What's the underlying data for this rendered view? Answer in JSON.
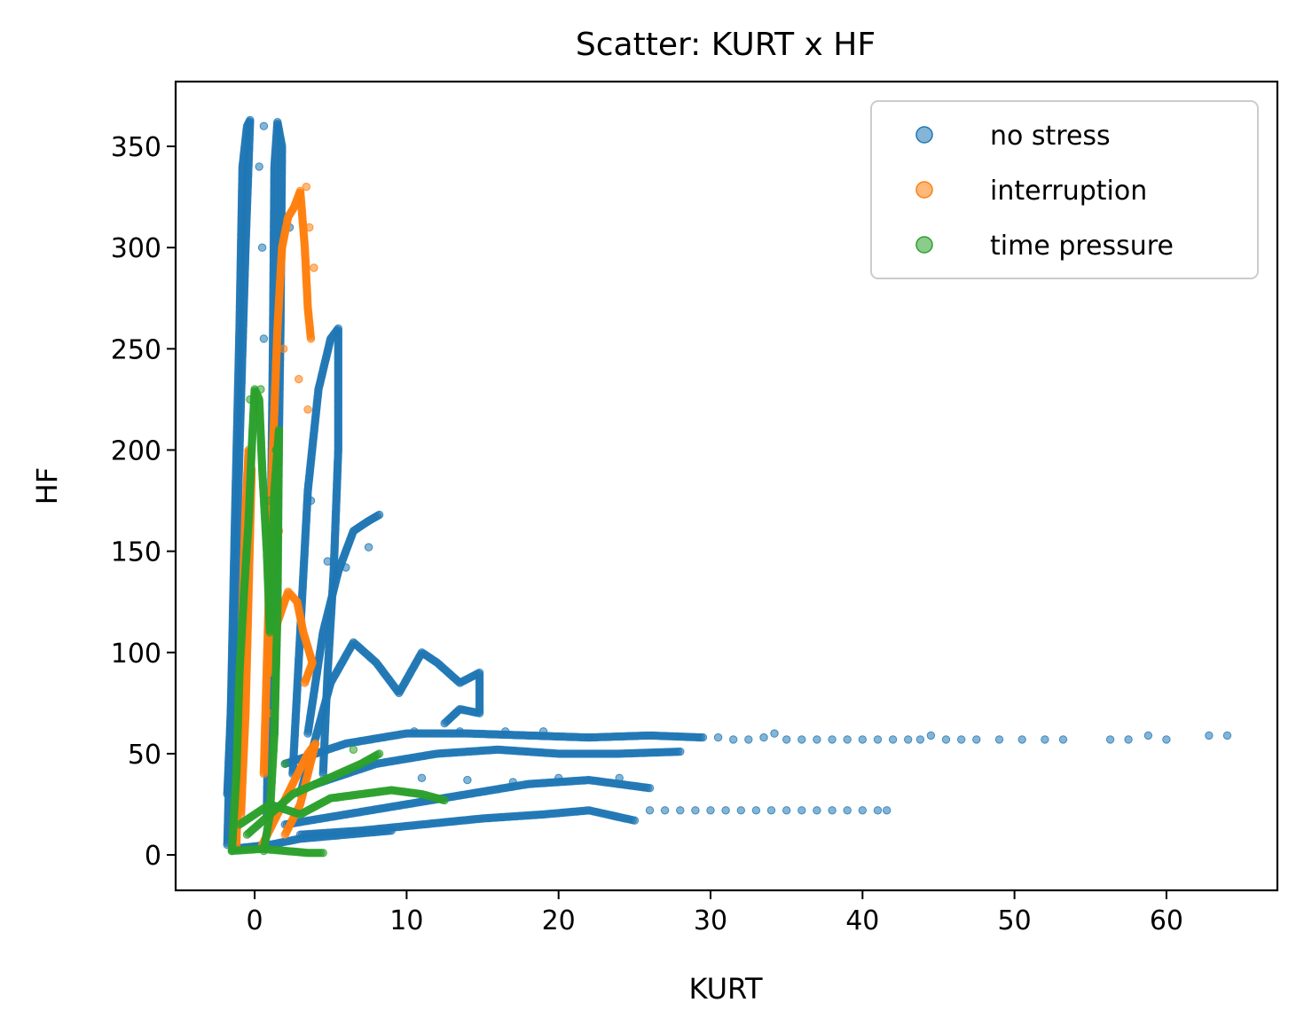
{
  "chart_data": {
    "type": "scatter",
    "title": "Scatter: KURT x HF",
    "xlabel": "KURT",
    "ylabel": "HF",
    "xlim": [
      -5.2,
      67.3
    ],
    "ylim": [
      -17.5,
      382
    ],
    "xticks": [
      0,
      10,
      20,
      30,
      40,
      50,
      60
    ],
    "yticks": [
      0,
      50,
      100,
      150,
      200,
      250,
      300,
      350
    ],
    "grid": false,
    "legend_position": "top-right",
    "series": [
      {
        "name": "no stress",
        "color": "#1f77b4",
        "segments": [
          [
            [
              -1.8,
              5
            ],
            [
              -1.6,
              60
            ],
            [
              -1.3,
              165
            ],
            [
              -1.0,
              260
            ],
            [
              -0.8,
              340
            ],
            [
              -0.5,
              360
            ],
            [
              -0.3,
              363
            ],
            [
              -0.6,
              300
            ],
            [
              -1.0,
              200
            ],
            [
              -1.4,
              100
            ],
            [
              -1.8,
              30
            ]
          ],
          [
            [
              0.8,
              20
            ],
            [
              1.0,
              120
            ],
            [
              1.2,
              250
            ],
            [
              1.3,
              340
            ],
            [
              1.5,
              362
            ],
            [
              1.8,
              350
            ],
            [
              1.7,
              260
            ],
            [
              1.5,
              160
            ],
            [
              1.3,
              60
            ]
          ],
          [
            [
              2.5,
              40
            ],
            [
              3.0,
              110
            ],
            [
              3.5,
              180
            ],
            [
              4.2,
              230
            ],
            [
              5.0,
              255
            ],
            [
              5.5,
              260
            ],
            [
              5.5,
              200
            ],
            [
              5.2,
              140
            ],
            [
              4.8,
              90
            ],
            [
              4.5,
              40
            ]
          ],
          [
            [
              3.5,
              60
            ],
            [
              4.5,
              110
            ],
            [
              5.5,
              140
            ],
            [
              6.5,
              160
            ],
            [
              7.5,
              165
            ],
            [
              8.2,
              168
            ]
          ],
          [
            [
              3.0,
              30
            ],
            [
              5.0,
              85
            ],
            [
              6.5,
              105
            ],
            [
              8.0,
              95
            ],
            [
              9.5,
              80
            ],
            [
              11.0,
              100
            ],
            [
              12.0,
              95
            ],
            [
              13.5,
              85
            ],
            [
              14.8,
              90
            ],
            [
              14.8,
              70
            ],
            [
              13.5,
              72
            ],
            [
              12.5,
              65
            ]
          ],
          [
            [
              2.0,
              45
            ],
            [
              6.0,
              55
            ],
            [
              10.0,
              60
            ],
            [
              14.0,
              60
            ],
            [
              18.0,
              59
            ],
            [
              22.0,
              58
            ],
            [
              26.0,
              59
            ],
            [
              29.5,
              58
            ]
          ],
          [
            [
              4.0,
              35
            ],
            [
              8.0,
              45
            ],
            [
              12.0,
              50
            ],
            [
              16.0,
              52
            ],
            [
              20.0,
              50
            ],
            [
              24.0,
              50
            ],
            [
              28.0,
              51
            ]
          ],
          [
            [
              2.0,
              15
            ],
            [
              6.0,
              20
            ],
            [
              10.0,
              25
            ],
            [
              14.0,
              30
            ],
            [
              18.0,
              35
            ],
            [
              22.0,
              37
            ],
            [
              26.0,
              33
            ]
          ],
          [
            [
              3.0,
              10
            ],
            [
              7.0,
              12
            ],
            [
              11.0,
              15
            ],
            [
              15.0,
              18
            ],
            [
              19.0,
              20
            ],
            [
              22.0,
              22
            ],
            [
              25.0,
              17
            ]
          ],
          [
            [
              -1.5,
              3
            ],
            [
              1.0,
              5
            ],
            [
              3.0,
              8
            ],
            [
              6.0,
              10
            ],
            [
              9.0,
              12
            ]
          ]
        ],
        "points": [
          [
            30.5,
            58
          ],
          [
            31.5,
            57
          ],
          [
            32.5,
            57
          ],
          [
            33.5,
            58
          ],
          [
            34.2,
            60
          ],
          [
            35.0,
            57
          ],
          [
            36.0,
            57
          ],
          [
            37.0,
            57
          ],
          [
            38.0,
            57
          ],
          [
            39.0,
            57
          ],
          [
            40.0,
            57
          ],
          [
            41.0,
            57
          ],
          [
            42.0,
            57
          ],
          [
            43.0,
            57
          ],
          [
            43.8,
            57
          ],
          [
            44.5,
            59
          ],
          [
            45.5,
            57
          ],
          [
            46.5,
            57
          ],
          [
            47.5,
            57
          ],
          [
            49.0,
            57
          ],
          [
            50.5,
            57
          ],
          [
            52.0,
            57
          ],
          [
            53.2,
            57
          ],
          [
            56.3,
            57
          ],
          [
            57.5,
            57
          ],
          [
            58.8,
            59
          ],
          [
            60.0,
            57
          ],
          [
            62.8,
            59
          ],
          [
            64.0,
            59
          ],
          [
            26.0,
            22
          ],
          [
            27.0,
            22
          ],
          [
            28.0,
            22
          ],
          [
            29.0,
            22
          ],
          [
            30.0,
            22
          ],
          [
            31.0,
            22
          ],
          [
            32.0,
            22
          ],
          [
            33.0,
            22
          ],
          [
            34.0,
            22
          ],
          [
            35.0,
            22
          ],
          [
            36.0,
            22
          ],
          [
            37.0,
            22
          ],
          [
            38.0,
            22
          ],
          [
            39.0,
            22
          ],
          [
            40.0,
            22
          ],
          [
            41.0,
            22
          ],
          [
            41.6,
            22
          ],
          [
            10.5,
            61
          ],
          [
            13.5,
            61
          ],
          [
            16.5,
            61
          ],
          [
            19.0,
            61
          ],
          [
            22.0,
            58
          ],
          [
            11.0,
            38
          ],
          [
            14.0,
            37
          ],
          [
            17.0,
            36
          ],
          [
            20.0,
            38
          ],
          [
            24.0,
            38
          ],
          [
            6.0,
            142
          ],
          [
            7.5,
            152
          ],
          [
            4.8,
            145
          ],
          [
            3.7,
            175
          ],
          [
            2.3,
            310
          ],
          [
            0.6,
            360
          ],
          [
            0.3,
            340
          ],
          [
            0.5,
            300
          ],
          [
            0.6,
            255
          ]
        ]
      },
      {
        "name": "interruption",
        "color": "#ff7f0e",
        "segments": [
          [
            [
              -1.2,
              5
            ],
            [
              -1.0,
              60
            ],
            [
              -0.8,
              120
            ],
            [
              -0.6,
              170
            ],
            [
              -0.4,
              200
            ],
            [
              -0.2,
              190
            ],
            [
              -0.4,
              130
            ],
            [
              -0.6,
              70
            ],
            [
              -0.9,
              20
            ]
          ],
          [
            [
              0.6,
              40
            ],
            [
              0.9,
              120
            ],
            [
              1.2,
              200
            ],
            [
              1.5,
              260
            ],
            [
              1.8,
              300
            ],
            [
              2.2,
              315
            ],
            [
              2.6,
              320
            ],
            [
              3.0,
              328
            ],
            [
              3.3,
              300
            ],
            [
              3.5,
              270
            ],
            [
              3.7,
              255
            ]
          ],
          [
            [
              1.0,
              90
            ],
            [
              1.5,
              115
            ],
            [
              2.2,
              130
            ],
            [
              2.8,
              125
            ],
            [
              3.2,
              110
            ],
            [
              3.6,
              100
            ],
            [
              3.8,
              95
            ],
            [
              3.3,
              85
            ]
          ],
          [
            [
              0.5,
              5
            ],
            [
              1.5,
              20
            ],
            [
              2.5,
              35
            ],
            [
              3.5,
              50
            ],
            [
              4.0,
              55
            ],
            [
              3.0,
              25
            ],
            [
              2.0,
              10
            ]
          ]
        ],
        "points": [
          [
            3.4,
            330
          ],
          [
            3.6,
            310
          ],
          [
            3.9,
            290
          ],
          [
            3.5,
            220
          ],
          [
            2.9,
            235
          ],
          [
            1.9,
            250
          ],
          [
            0.9,
            70
          ],
          [
            1.6,
            160
          ]
        ]
      },
      {
        "name": "time pressure",
        "color": "#2ca02c",
        "segments": [
          [
            [
              -1.5,
              2
            ],
            [
              -1.2,
              40
            ],
            [
              -1.0,
              90
            ],
            [
              -0.7,
              130
            ],
            [
              -0.4,
              165
            ],
            [
              -0.2,
              200
            ],
            [
              0.0,
              230
            ],
            [
              0.3,
              225
            ],
            [
              0.5,
              190
            ],
            [
              0.8,
              150
            ],
            [
              1.0,
              110
            ],
            [
              1.3,
              180
            ],
            [
              1.6,
              210
            ],
            [
              1.5,
              120
            ],
            [
              1.3,
              60
            ],
            [
              1.0,
              20
            ],
            [
              0.6,
              2
            ]
          ],
          [
            [
              -0.5,
              10
            ],
            [
              1.0,
              20
            ],
            [
              2.5,
              30
            ],
            [
              4.0,
              35
            ],
            [
              5.5,
              40
            ],
            [
              7.0,
              45
            ],
            [
              8.2,
              50
            ]
          ],
          [
            [
              -1.0,
              15
            ],
            [
              1.0,
              25
            ],
            [
              3.0,
              20
            ],
            [
              5.0,
              28
            ],
            [
              7.0,
              30
            ],
            [
              9.0,
              32
            ],
            [
              11.0,
              30
            ],
            [
              12.5,
              27
            ]
          ],
          [
            [
              -1.5,
              2
            ],
            [
              0.5,
              3
            ],
            [
              2.0,
              2
            ],
            [
              3.5,
              1
            ],
            [
              4.5,
              1
            ]
          ]
        ],
        "points": [
          [
            0.4,
            230
          ],
          [
            -0.3,
            225
          ],
          [
            1.4,
            200
          ],
          [
            0.9,
            175
          ],
          [
            2.0,
            45
          ],
          [
            6.5,
            52
          ],
          [
            7.8,
            48
          ]
        ]
      }
    ]
  }
}
